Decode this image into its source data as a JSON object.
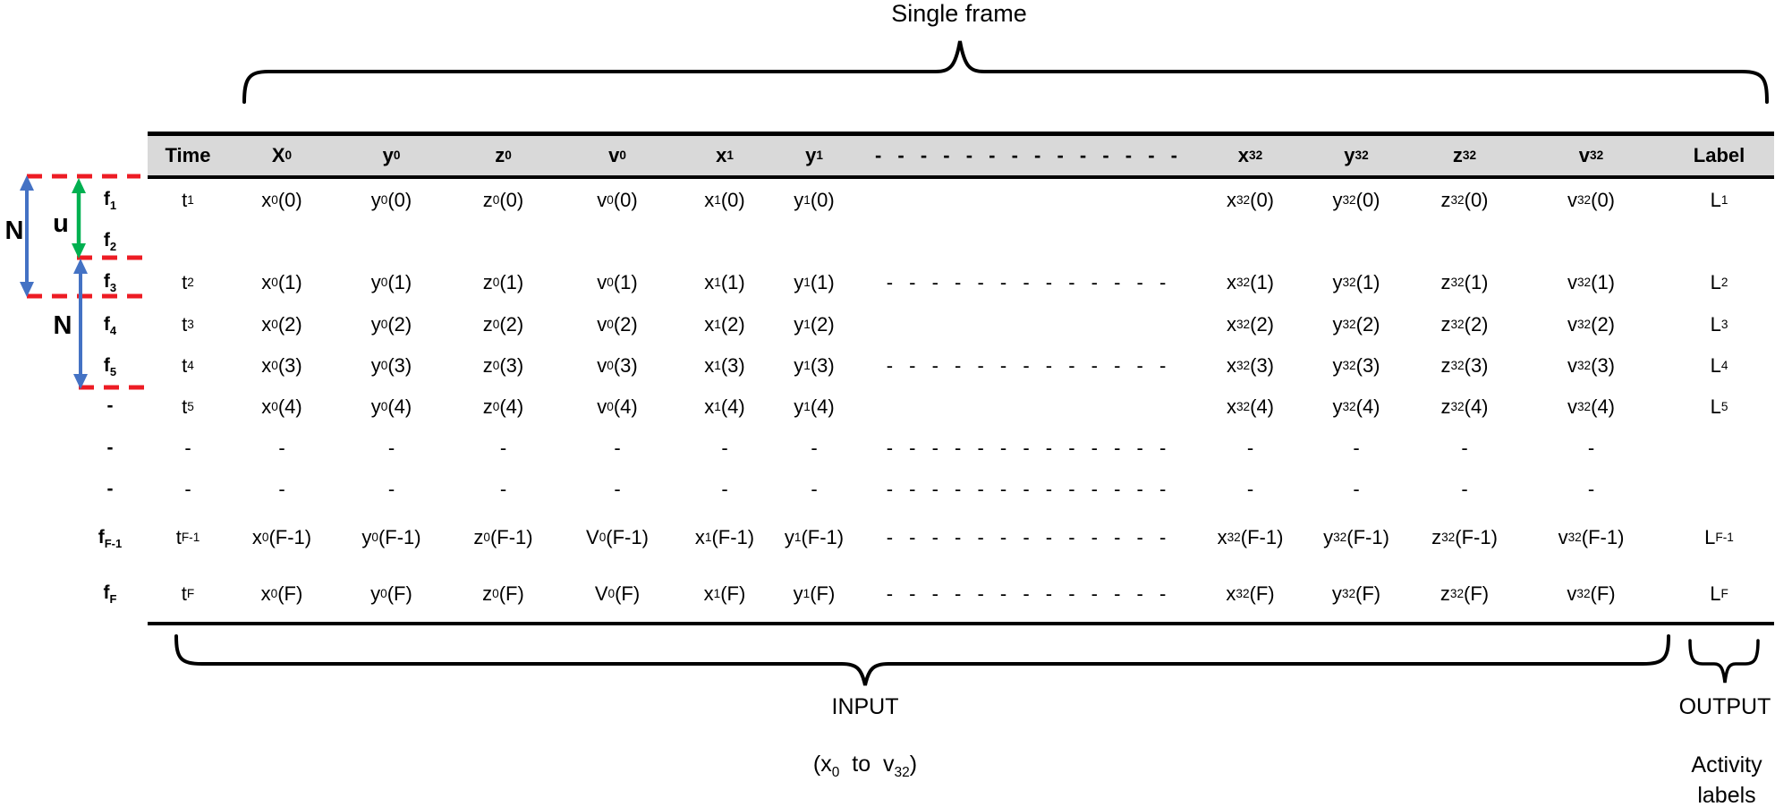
{
  "figure": {
    "top_label": "Single frame",
    "left_annotations": {
      "n_top": "N",
      "u": "u",
      "n_bottom": "N"
    },
    "bottom_annotations": {
      "input_label": "INPUT",
      "input_range": "(x~0~  to  v~32~)",
      "output_label": "OUTPUT",
      "output_desc": "Activity\nlabels"
    }
  },
  "colors": {
    "red_dashed": "#ed1c24",
    "blue_arrow": "#4472c4",
    "green_arrow": "#00b050",
    "header_bg": "#d9d9d9",
    "line_black": "#000000"
  },
  "table": {
    "headers": [
      "Time",
      "X~0~",
      "y~0~",
      "z~0~",
      "v~0~",
      "x~1~",
      "y~1~",
      "- - - - - - - - - - - - - -",
      "x~32~",
      "y~32~",
      "z~32~",
      "v~32~",
      "Label"
    ],
    "rows": [
      {
        "frame": "f~1~",
        "cells": [
          "t~1~",
          "x~0~ (0)",
          "y~0~ (0)",
          "z~0~ (0)",
          "v~0~ (0)",
          "x~1~ (0)",
          "y~1~ (0)",
          "",
          "x~32~ (0)",
          "y~32~ (0)",
          "z~32~ (0)",
          "v~32~ (0)",
          "L~1~"
        ]
      },
      {
        "frame": "f~2~",
        "cells": [
          "",
          "",
          "",
          "",
          "",
          "",
          "",
          "",
          "",
          "",
          "",
          "",
          ""
        ]
      },
      {
        "frame": "f~3~",
        "cells": [
          "t~2~",
          "x~0~ (1)",
          "y~0~ (1)",
          "z~0~ (1)",
          "v~0~ (1)",
          "x~1~ (1)",
          "y~1~ (1)",
          "- - - - - - - - - - - - -",
          "x~32~ (1)",
          "y~32~ (1)",
          "z~32~ (1)",
          "v~32~ (1)",
          "L~2~"
        ]
      },
      {
        "frame": "f~4~",
        "cells": [
          "t~3~",
          "x~0~ (2)",
          "y~0~ (2)",
          "z~0~ (2)",
          "v~0~ (2)",
          "x~1~ (2)",
          "y~1~ (2)",
          "",
          "x~32~ (2)",
          "y~32~ (2)",
          "z~32~ (2)",
          "v~32~ (2)",
          "L~3~"
        ]
      },
      {
        "frame": "f~5~",
        "cells": [
          "t~4~",
          "x~0~ (3)",
          "y~0~ (3)",
          "z~0~ (3)",
          "v~0~ (3)",
          "x~1~ (3)",
          "y~1~ (3)",
          "- - - - - - - - - - - - -",
          "x~32~ (3)",
          "y~32~ (3)",
          "z~32~ (3)",
          "v~32~ (3)",
          "L~4~"
        ]
      },
      {
        "frame": "-",
        "cells": [
          "t~5~",
          "x~0~ (4)",
          "y~0~ (4)",
          "z~0~ (4)",
          "v~0~ (4)",
          "x~1~ (4)",
          "y~1~ (4)",
          "",
          "x~32~ (4)",
          "y~32~ (4)",
          "z~32~ (4)",
          "v~32~ (4)",
          "L~5~"
        ]
      },
      {
        "frame": "-",
        "cells": [
          "-",
          "-",
          "-",
          "-",
          "-",
          "-",
          "-",
          "- - - - - - - - - - - - -",
          "-",
          "-",
          "-",
          "-",
          ""
        ]
      },
      {
        "frame": "-",
        "cells": [
          "-",
          "-",
          "-",
          "-",
          "-",
          "-",
          "-",
          "- - - - - - - - - - - - -",
          "-",
          "-",
          "-",
          "-",
          ""
        ]
      },
      {
        "frame": "f~F-1~",
        "cells": [
          "t~F-1~",
          "x~0~ (F-1)",
          "y~0~ (F-1)",
          "z~0~ (F-1)",
          "V~0~(F-1)",
          "x~1~ (F-1)",
          "y~1~ (F-1)",
          "- - - - - - - - - - - - -",
          "x~32~ (F-1)",
          "y~32~ (F-1)",
          "z~32~ (F-1)",
          "v~32~ (F-1)",
          "L~F-1~"
        ]
      },
      {
        "frame": "f~F~",
        "cells": [
          "t~F~",
          "x~0~ (F)",
          "y~0~ (F)",
          "z~0~ (F)",
          "V~0~(F)",
          "x~1~ (F)",
          "y~1~ (F)",
          "- - - - - - - - - - - - -",
          "x~32~ (F)",
          "y~32~ (F)",
          "z~32~ (F)",
          "v~32~ (F)",
          "L~F~"
        ]
      }
    ]
  }
}
